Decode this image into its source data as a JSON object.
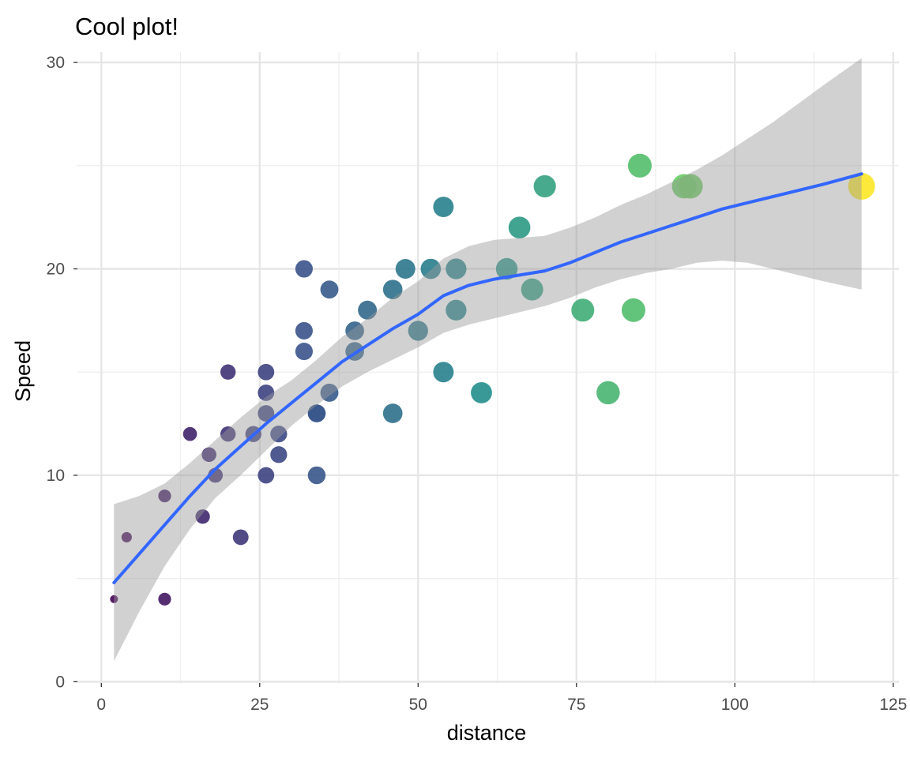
{
  "chart_data": {
    "type": "scatter",
    "title": "Cool plot!",
    "xlabel": "distance",
    "ylabel": "Speed",
    "xlim": [
      -3.9,
      125.9
    ],
    "ylim": [
      -0.1,
      30.5
    ],
    "x_ticks": [
      0,
      25,
      50,
      75,
      100,
      125
    ],
    "y_ticks": [
      0,
      10,
      20,
      30
    ],
    "grid": true,
    "legend": "none",
    "point_color_scale": "viridis by distance",
    "point_size_scale": "by distance",
    "viridis_stops": [
      "#440154",
      "#3b528b",
      "#21908c",
      "#5ec962",
      "#fde725"
    ],
    "points": [
      {
        "x": 2,
        "y": 4
      },
      {
        "x": 10,
        "y": 4
      },
      {
        "x": 4,
        "y": 7
      },
      {
        "x": 22,
        "y": 7
      },
      {
        "x": 16,
        "y": 8
      },
      {
        "x": 10,
        "y": 9
      },
      {
        "x": 18,
        "y": 10
      },
      {
        "x": 26,
        "y": 10
      },
      {
        "x": 34,
        "y": 10
      },
      {
        "x": 17,
        "y": 11
      },
      {
        "x": 28,
        "y": 11
      },
      {
        "x": 14,
        "y": 12
      },
      {
        "x": 20,
        "y": 12
      },
      {
        "x": 24,
        "y": 12
      },
      {
        "x": 28,
        "y": 12
      },
      {
        "x": 26,
        "y": 13
      },
      {
        "x": 34,
        "y": 13
      },
      {
        "x": 34,
        "y": 13
      },
      {
        "x": 46,
        "y": 13
      },
      {
        "x": 26,
        "y": 14
      },
      {
        "x": 36,
        "y": 14
      },
      {
        "x": 60,
        "y": 14
      },
      {
        "x": 80,
        "y": 14
      },
      {
        "x": 20,
        "y": 15
      },
      {
        "x": 26,
        "y": 15
      },
      {
        "x": 54,
        "y": 15
      },
      {
        "x": 32,
        "y": 16
      },
      {
        "x": 40,
        "y": 16
      },
      {
        "x": 32,
        "y": 17
      },
      {
        "x": 40,
        "y": 17
      },
      {
        "x": 50,
        "y": 17
      },
      {
        "x": 42,
        "y": 18
      },
      {
        "x": 56,
        "y": 18
      },
      {
        "x": 76,
        "y": 18
      },
      {
        "x": 84,
        "y": 18
      },
      {
        "x": 36,
        "y": 19
      },
      {
        "x": 46,
        "y": 19
      },
      {
        "x": 68,
        "y": 19
      },
      {
        "x": 32,
        "y": 20
      },
      {
        "x": 48,
        "y": 20
      },
      {
        "x": 52,
        "y": 20
      },
      {
        "x": 56,
        "y": 20
      },
      {
        "x": 64,
        "y": 20
      },
      {
        "x": 66,
        "y": 22
      },
      {
        "x": 54,
        "y": 23
      },
      {
        "x": 70,
        "y": 24
      },
      {
        "x": 92,
        "y": 24
      },
      {
        "x": 93,
        "y": 24
      },
      {
        "x": 120,
        "y": 24
      },
      {
        "x": 85,
        "y": 25
      }
    ],
    "smooth": {
      "method": "loess",
      "line_color": "#3366ff",
      "band_color": "#999999",
      "x": [
        2,
        6,
        10,
        14,
        18,
        22,
        26,
        30,
        34,
        38,
        42,
        46,
        50,
        54,
        58,
        62,
        66,
        70,
        74,
        78,
        82,
        86,
        90,
        94,
        98,
        102,
        106,
        110,
        114,
        120
      ],
      "y": [
        4.8,
        6.2,
        7.6,
        9.0,
        10.3,
        11.4,
        12.5,
        13.5,
        14.5,
        15.5,
        16.3,
        17.1,
        17.8,
        18.7,
        19.2,
        19.5,
        19.7,
        19.9,
        20.3,
        20.8,
        21.3,
        21.7,
        22.1,
        22.5,
        22.9,
        23.2,
        23.5,
        23.8,
        24.1,
        24.6
      ],
      "lower": [
        1.0,
        3.4,
        5.6,
        7.4,
        8.9,
        10.0,
        11.2,
        12.4,
        13.4,
        14.3,
        15.0,
        15.6,
        16.2,
        16.9,
        17.3,
        17.6,
        17.9,
        18.2,
        18.6,
        19.1,
        19.5,
        19.8,
        20.0,
        20.3,
        20.4,
        20.3,
        20.0,
        19.7,
        19.4,
        19.0
      ],
      "upper": [
        8.6,
        9.0,
        9.6,
        10.6,
        11.7,
        12.8,
        13.8,
        14.6,
        15.6,
        16.7,
        17.6,
        18.6,
        19.4,
        20.5,
        21.1,
        21.4,
        21.5,
        21.6,
        22.0,
        22.5,
        23.1,
        23.6,
        24.2,
        24.8,
        25.5,
        26.3,
        27.1,
        28.0,
        28.9,
        30.2
      ]
    }
  }
}
